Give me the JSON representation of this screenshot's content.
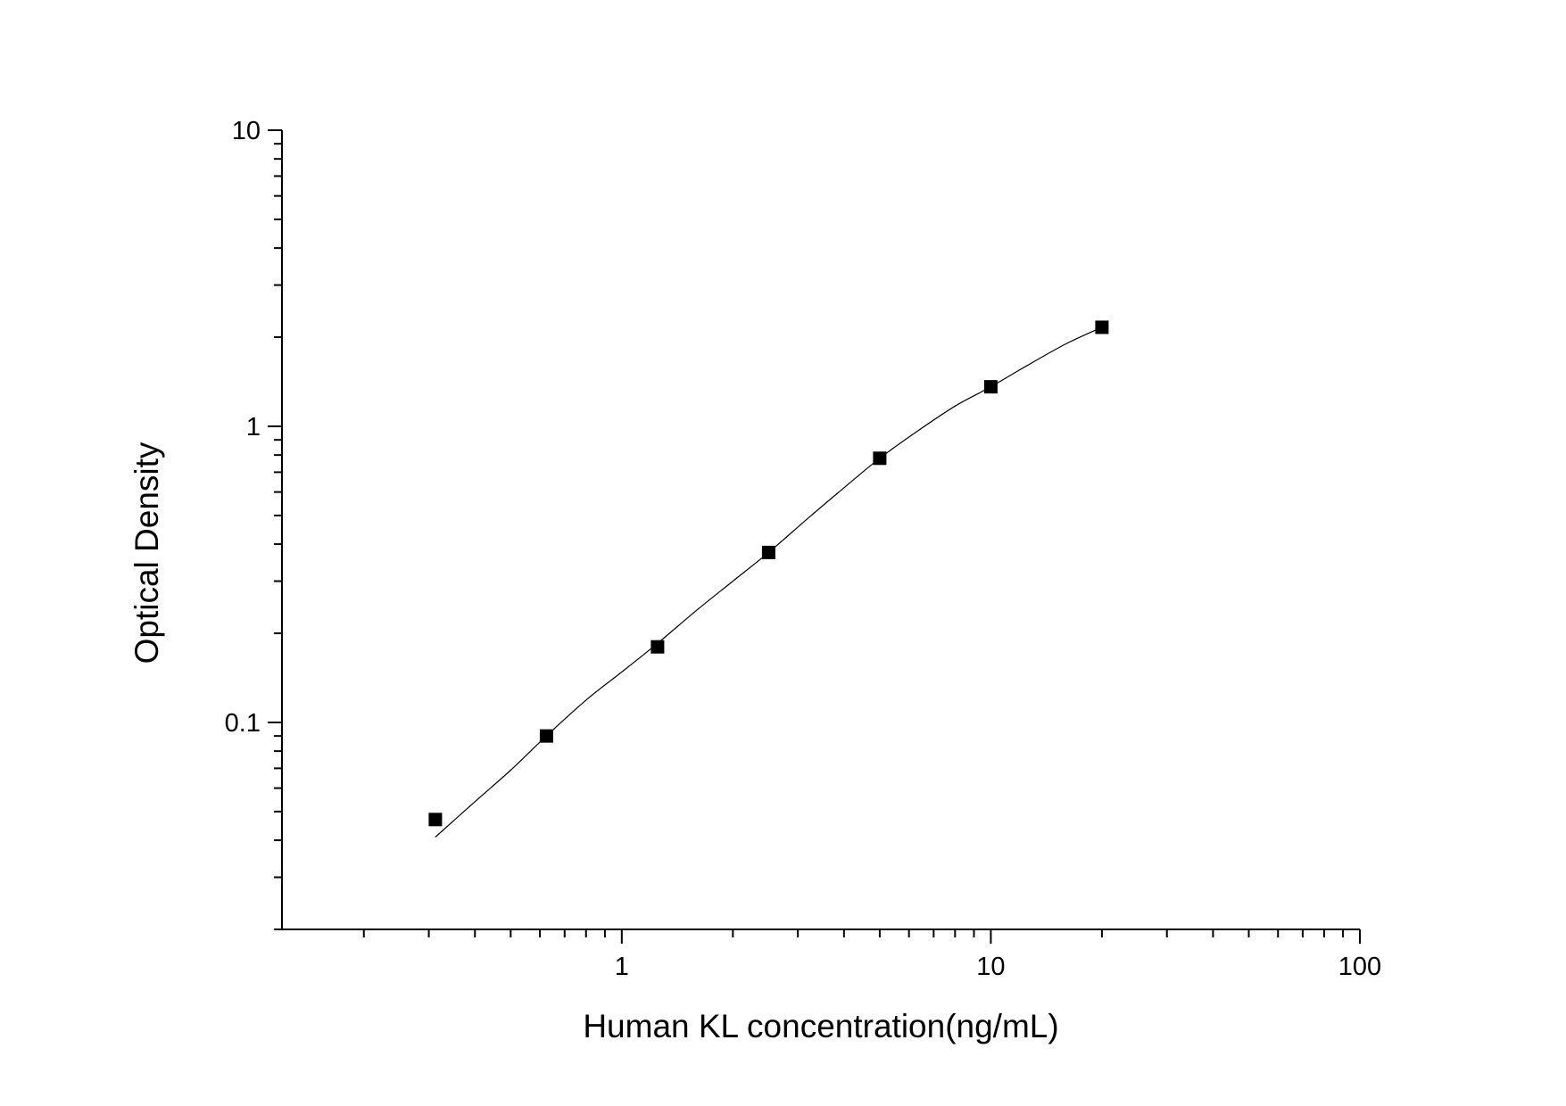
{
  "chart_data": {
    "type": "scatter",
    "title": "",
    "xlabel": "Human KL concentration(ng/mL)",
    "ylabel": "Optical Density",
    "xscale": "log",
    "yscale": "log",
    "xlim": [
      0.12,
      100
    ],
    "ylim": [
      0.02,
      10
    ],
    "x_ticks": [
      {
        "value": 1,
        "label": "1"
      },
      {
        "value": 10,
        "label": "10"
      },
      {
        "value": 100,
        "label": "100"
      }
    ],
    "y_ticks": [
      {
        "value": 0.1,
        "label": "0.1"
      },
      {
        "value": 1,
        "label": "1"
      },
      {
        "value": 10,
        "label": "10"
      }
    ],
    "grid": false,
    "marker": "square",
    "colors": {
      "points": "#000000",
      "curve": "#000000",
      "axes": "#000000"
    },
    "series": [
      {
        "x": [
          0.3125,
          0.625,
          1.25,
          2.5,
          5,
          10,
          20
        ],
        "y": [
          0.047,
          0.09,
          0.18,
          0.375,
          0.78,
          1.36,
          2.16
        ]
      }
    ],
    "fit_curve": {
      "x": [
        0.3125,
        0.4,
        0.5,
        0.625,
        0.8,
        1.0,
        1.25,
        1.6,
        2.0,
        2.5,
        3.2,
        4.0,
        5.0,
        6.3,
        8.0,
        10,
        12.5,
        16,
        20
      ],
      "y": [
        0.041,
        0.054,
        0.069,
        0.09,
        0.119,
        0.148,
        0.185,
        0.24,
        0.3,
        0.375,
        0.49,
        0.62,
        0.78,
        0.96,
        1.17,
        1.36,
        1.6,
        1.9,
        2.16
      ]
    }
  }
}
